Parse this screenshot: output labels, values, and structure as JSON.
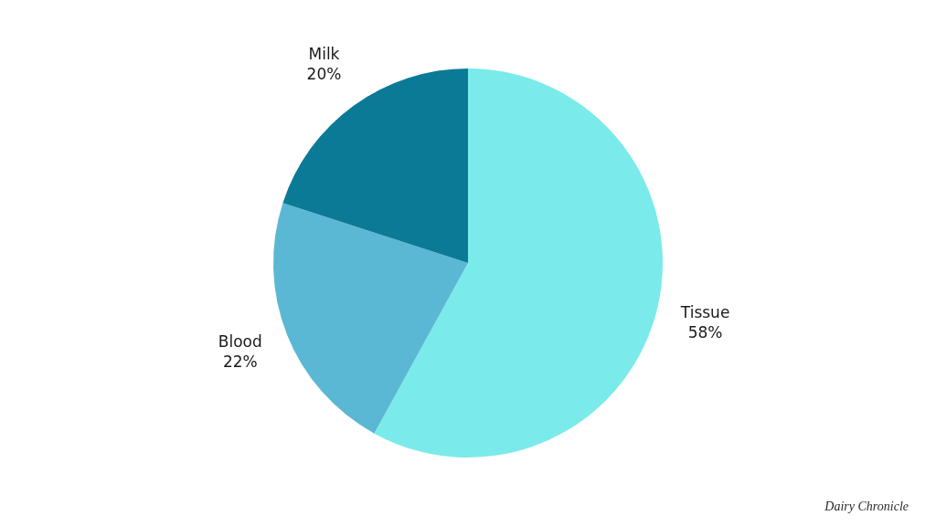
{
  "chart_data": {
    "type": "pie",
    "categories": [
      "Tissue",
      "Blood",
      "Milk"
    ],
    "values": [
      58,
      22,
      20
    ],
    "value_labels": [
      "58%",
      "22%",
      "20%"
    ],
    "colors": [
      "#7AEAEA",
      "#5BB8D4",
      "#0B7A96"
    ],
    "data_labels": true,
    "annotations": [
      "Dairy Chronicle"
    ]
  }
}
